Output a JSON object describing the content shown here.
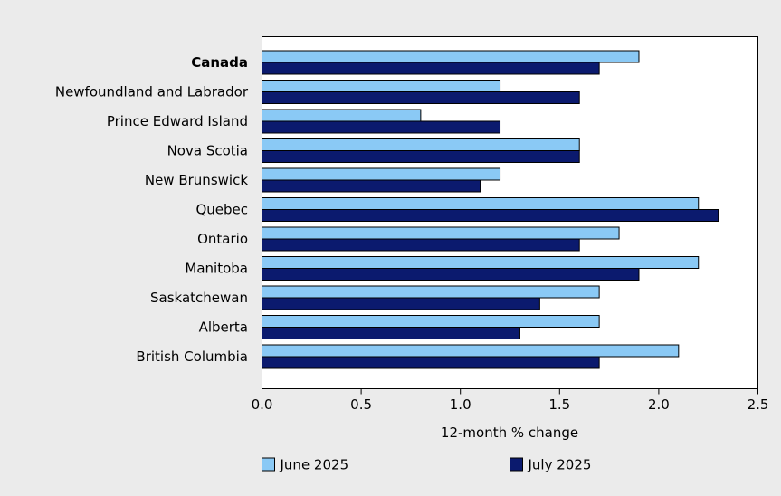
{
  "chart_data": {
    "type": "bar",
    "orientation": "horizontal",
    "categories": [
      "Canada",
      "Newfoundland and Labrador",
      "Prince Edward Island",
      "Nova Scotia",
      "New Brunswick",
      "Quebec",
      "Ontario",
      "Manitoba",
      "Saskatchewan",
      "Alberta",
      "British Columbia"
    ],
    "bold_categories": [
      "Canada"
    ],
    "series": [
      {
        "name": "June 2025",
        "color": "#8ac9f5",
        "values": [
          1.9,
          1.2,
          0.8,
          1.6,
          1.2,
          2.2,
          1.8,
          2.2,
          1.7,
          1.7,
          2.1
        ]
      },
      {
        "name": "July 2025",
        "color": "#0b1a6e",
        "values": [
          1.7,
          1.6,
          1.2,
          1.6,
          1.1,
          2.3,
          1.6,
          1.9,
          1.4,
          1.3,
          1.7
        ]
      }
    ],
    "xlabel": "12-month % change",
    "ylabel": "",
    "xlim": [
      0,
      2.5
    ],
    "xticks": [
      0,
      0.5,
      1,
      1.5,
      2,
      2.5
    ],
    "xtick_labels": [
      "0.0",
      "0.5",
      "1.0",
      "1.5",
      "2.0",
      "2.5"
    ],
    "grid": false,
    "legend_position": "bottom"
  }
}
